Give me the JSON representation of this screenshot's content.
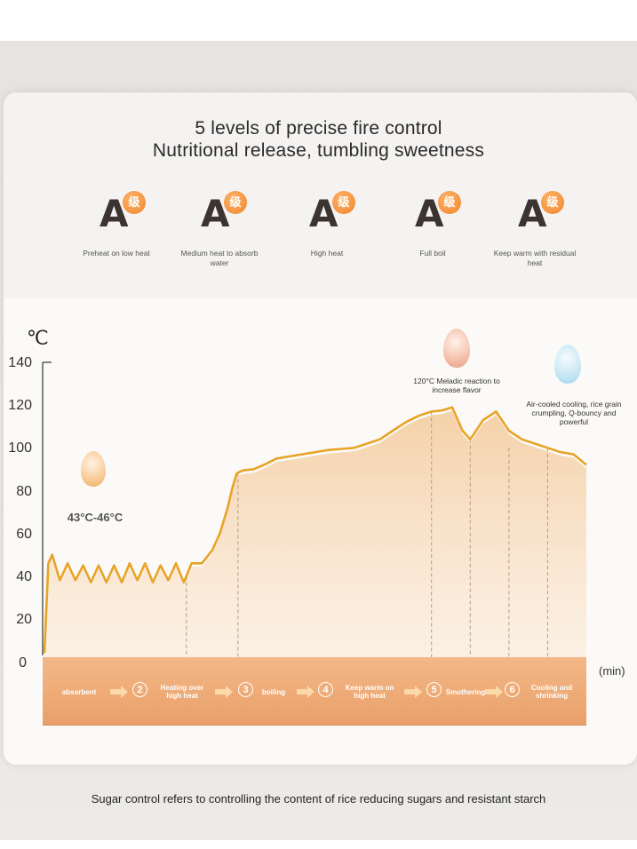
{
  "header": {
    "title_line1": "5 levels of precise fire control",
    "title_line2": "Nutritional release, tumbling sweetness"
  },
  "levels": [
    {
      "badge": "A",
      "badge_sup": "级",
      "label": "Preheat on low heat"
    },
    {
      "badge": "A",
      "badge_sup": "级",
      "label": "Medium heat to absorb water"
    },
    {
      "badge": "A",
      "badge_sup": "级",
      "label": "High heat"
    },
    {
      "badge": "A",
      "badge_sup": "级",
      "label": "Full boil"
    },
    {
      "badge": "A",
      "badge_sup": "级",
      "label": "Keep warm with residual heat"
    }
  ],
  "chart_data": {
    "type": "line",
    "title": "",
    "ylabel": "℃",
    "xlabel": "(min)",
    "ylim": [
      0,
      140
    ],
    "yticks": [
      "140",
      "120",
      "100",
      "80",
      "60",
      "40",
      "20",
      "0"
    ],
    "grid": false,
    "series": [
      {
        "x": [
          0,
          0.3,
          0.6,
          1.2,
          1.8,
          2.4,
          3.0,
          3.6,
          4.2,
          4.8,
          5.4,
          6.0,
          6.6,
          7.2,
          7.8,
          8.4,
          9.0,
          9.6,
          10.2,
          10.8,
          11.4,
          12.2,
          13.0,
          13.6,
          14.2,
          14.6,
          14.9,
          15.2,
          15.4,
          16.2,
          17.0,
          18.0,
          19.0,
          20.0,
          21.0,
          22.0,
          23.0,
          24.0,
          25.0,
          26.0,
          27.0,
          28.0,
          29.0,
          30.0,
          30.8,
          31.6,
          32.4,
          33.0,
          34.0,
          35.0,
          36.0,
          37.0,
          38.0,
          39.0,
          40.0,
          41.0,
          42.0
        ],
        "y": [
          4,
          46,
          50,
          38,
          46,
          38,
          45,
          37,
          45,
          37,
          45,
          37,
          46,
          38,
          46,
          37,
          45,
          38,
          46,
          37,
          46,
          46,
          52,
          60,
          72,
          82,
          88,
          89,
          89.5,
          90,
          92,
          95,
          96,
          97,
          98,
          99,
          99.5,
          100,
          102,
          104,
          108,
          112,
          115,
          117,
          117.5,
          119,
          108,
          104,
          113,
          117,
          108,
          104,
          102,
          100,
          98,
          97,
          92
        ]
      }
    ],
    "annotations": [
      "43°C-46°C",
      "120°C Meladic reaction to increase flavor",
      "Air-cooled cooling, rice grain crumpling, Q-bouncy and powerful"
    ],
    "stages": [
      {
        "number": "",
        "label": "absorbent",
        "start": 0,
        "end": 11
      },
      {
        "number": "2",
        "label": "Heating over high heat",
        "start": 11,
        "end": 15
      },
      {
        "number": "3",
        "label": "boiling",
        "start": 15,
        "end": 30
      },
      {
        "number": "4",
        "label": "Keep warm on high heat",
        "start": 30,
        "end": 33
      },
      {
        "number": "5",
        "label": "Smothering",
        "start": 33,
        "end": 39
      },
      {
        "number": "6",
        "label": "Cooling and shrinking",
        "start": 39,
        "end": 42
      }
    ],
    "colors": {
      "line": "#e9a326",
      "fill": "#f6d8b4",
      "band": "#efa96a",
      "dash": "#b99a82"
    }
  },
  "footer": {
    "text": "Sugar control refers to controlling the content of rice reducing sugars and resistant starch"
  }
}
